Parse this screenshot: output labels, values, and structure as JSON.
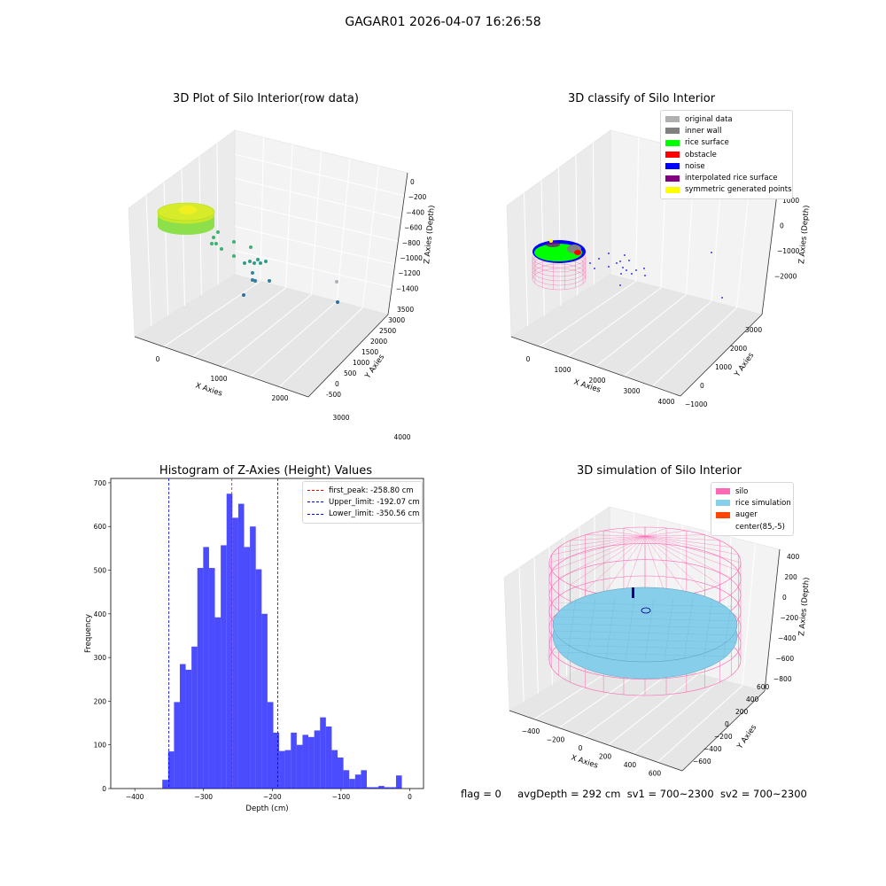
{
  "figure": {
    "suptitle": "GAGAR01 2026-04-07 16:26:58",
    "footer": {
      "flag": "flag = 0",
      "avg_depth": "avgDepth = 292 cm",
      "sv1": "sv1 = 700~2300",
      "sv2": "sv2 = 700~2300"
    }
  },
  "panels": {
    "raw": {
      "title": "3D Plot of Silo Interior(row data)",
      "xlabel": "X Axies",
      "ylabel": "Y Axies",
      "zlabel": "Z Axies (Depth)",
      "xticks": [
        "0",
        "1000",
        "2000",
        "3000",
        "4000"
      ],
      "yticks": [
        "-500",
        "0",
        "500",
        "1000",
        "1500",
        "2000",
        "2500",
        "3000",
        "3500"
      ],
      "zticks": [
        "0",
        "−200",
        "−400",
        "−600",
        "−800",
        "−1000",
        "−1200",
        "−1400"
      ]
    },
    "classify": {
      "title": "3D classify of Silo Interior",
      "xlabel": "X Axies",
      "ylabel": "Y Axies",
      "zlabel": "Z Axies (Depth)",
      "xticks": [
        "0",
        "1000",
        "2000",
        "3000",
        "4000"
      ],
      "yticks": [
        "−1000",
        "0",
        "1000",
        "2000",
        "3000"
      ],
      "zticks": [
        "1000",
        "0",
        "−1000",
        "−2000"
      ],
      "legend": [
        {
          "label": "original data",
          "color": "#b0b0b0"
        },
        {
          "label": "inner wall",
          "color": "#808080"
        },
        {
          "label": "rice surface",
          "color": "#00ff00"
        },
        {
          "label": "obstacle",
          "color": "#ff0000"
        },
        {
          "label": "noise",
          "color": "#0000ff"
        },
        {
          "label": "interpolated rice surface",
          "color": "#800080"
        },
        {
          "label": "symmetric generated points",
          "color": "#ffff00"
        }
      ]
    },
    "simulation": {
      "title": "3D simulation of Silo Interior",
      "xlabel": "X Axies",
      "ylabel": "Y Axies",
      "zlabel": "Z Axies (Depth)",
      "xticks": [
        "−400",
        "−200",
        "0",
        "200",
        "400",
        "600"
      ],
      "yticks": [
        "−600",
        "−400",
        "−200",
        "0",
        "200",
        "400",
        "600"
      ],
      "zticks": [
        "400",
        "200",
        "0",
        "−200",
        "−400",
        "−600",
        "−800"
      ],
      "legend": [
        {
          "label": "silo",
          "color": "#ff69b4"
        },
        {
          "label": "rice simulation",
          "color": "#87ceeb"
        },
        {
          "label": "auger",
          "color": "#ff4500"
        },
        {
          "label": "center(85,-5)",
          "color": "#ffffff"
        }
      ]
    }
  },
  "chart_data": [
    {
      "type": "histogram",
      "title": "Histogram of Z-Axies (Height) Values",
      "xlabel": "Depth (cm)",
      "ylabel": "Frequency",
      "xlim": [
        -435,
        20
      ],
      "ylim": [
        0,
        710
      ],
      "xticks": [
        -400,
        -300,
        -200,
        -100,
        0
      ],
      "xtick_labels": [
        "−400",
        "−300",
        "−200",
        "−100",
        "0"
      ],
      "yticks": [
        0,
        100,
        200,
        300,
        400,
        500,
        600,
        700
      ],
      "bar_color": "#0000ff",
      "bin_start": -360,
      "bin_width": 8.5,
      "values": [
        20,
        85,
        198,
        285,
        272,
        325,
        505,
        553,
        505,
        392,
        557,
        675,
        620,
        652,
        553,
        600,
        502,
        400,
        198,
        128,
        86,
        88,
        128,
        100,
        123,
        118,
        133,
        163,
        142,
        88,
        71,
        42,
        22,
        32,
        42,
        3,
        3,
        6,
        3,
        3,
        30
      ],
      "vlines": [
        {
          "x": -258.8,
          "color": "#ff0000",
          "label": "first_peak: -258.80 cm"
        },
        {
          "x": -192.07,
          "color": "#0000ff",
          "label": "Upper_limit: -192.07 cm"
        },
        {
          "x": -350.56,
          "color": "#0000ff",
          "label": "Lower_limit: -350.56 cm"
        }
      ],
      "legend_position": "top-right"
    }
  ]
}
